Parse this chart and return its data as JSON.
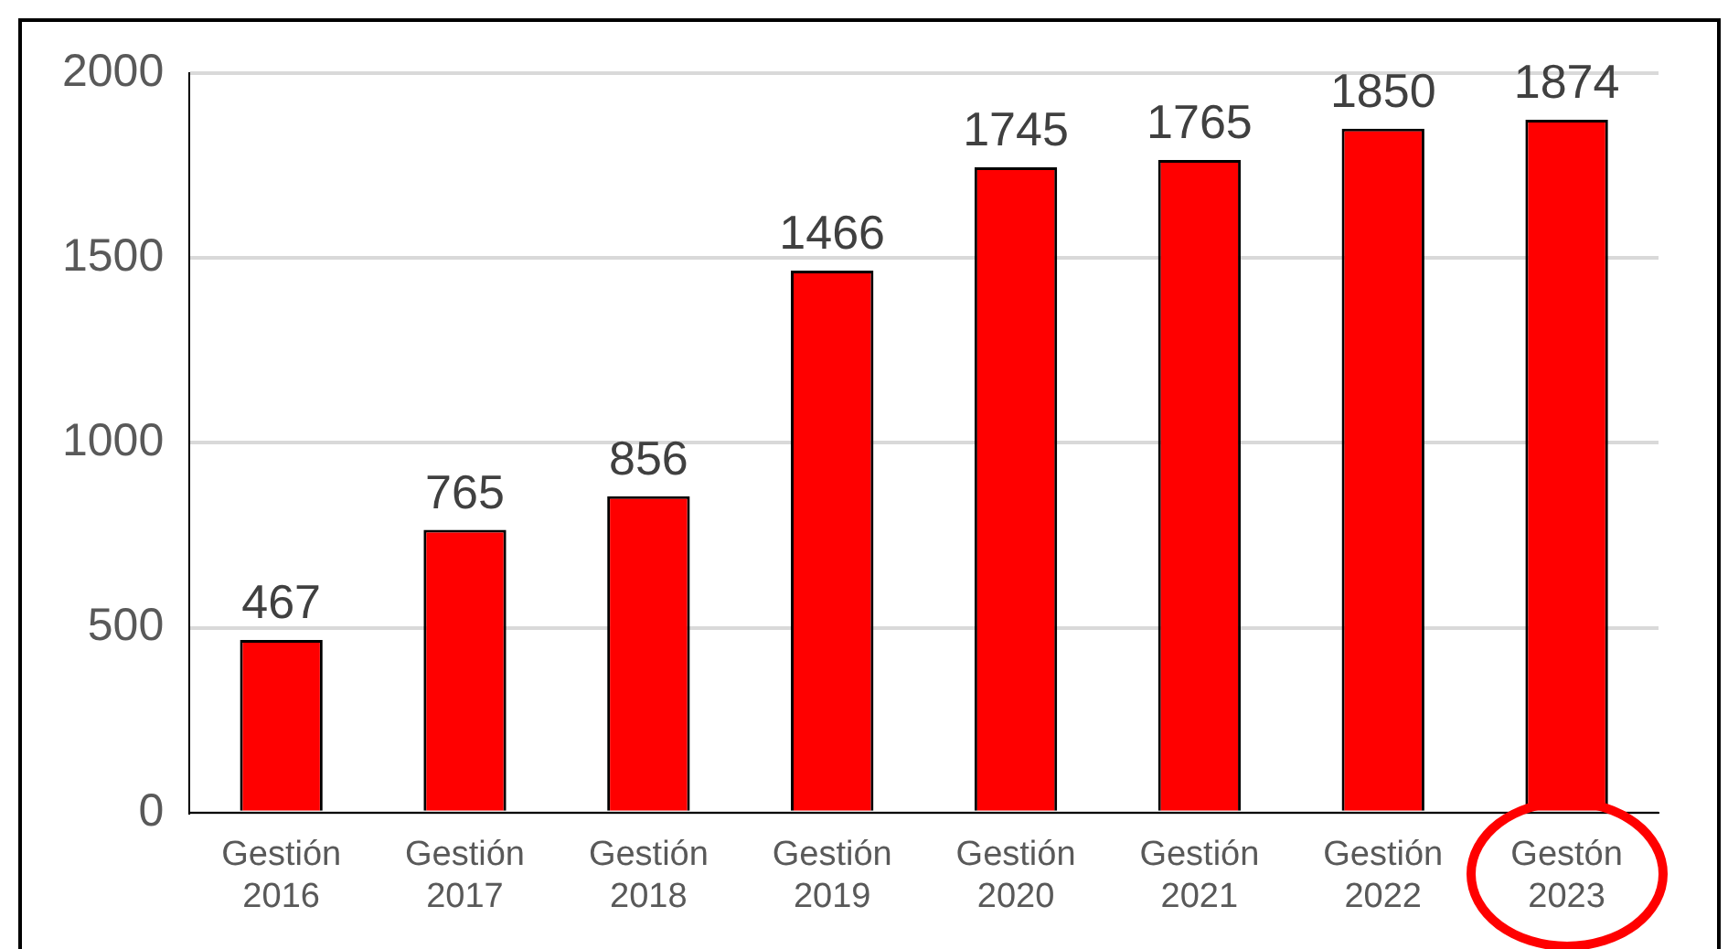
{
  "chart_data": {
    "type": "bar",
    "categories": [
      "Gestión 2016",
      "Gestión 2017",
      "Gestión 2018",
      "Gestión 2019",
      "Gestión 2020",
      "Gestión 2021",
      "Gestión 2022",
      "Gestón 2023"
    ],
    "values": [
      467,
      765,
      856,
      1466,
      1745,
      1765,
      1850,
      1874
    ],
    "color": "#ff0000",
    "ylim": [
      0,
      2000
    ],
    "yticks": [
      0,
      500,
      1000,
      1500,
      2000
    ],
    "grid": "y",
    "data_labels": true,
    "legend": false
  }
}
